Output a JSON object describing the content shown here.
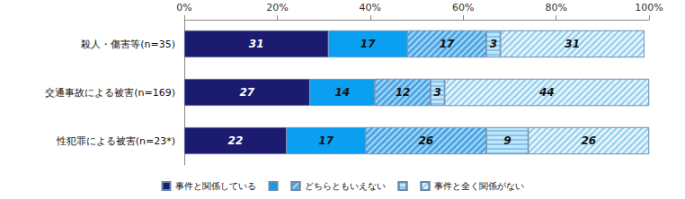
{
  "chart_data": {
    "type": "bar",
    "orientation": "horizontal",
    "stacked": true,
    "data_labels": true,
    "grid": false,
    "legend": "bottom",
    "categories": [
      "殺人・傷害等(n=35)",
      "交通事故による被害(n=169)",
      "性犯罪による被害(n=23*)"
    ],
    "xlim": [
      0,
      100
    ],
    "xticks": [
      {
        "value": 0,
        "label": "0%"
      },
      {
        "value": 20,
        "label": "20%"
      },
      {
        "value": 40,
        "label": "40%"
      },
      {
        "value": 60,
        "label": "60%"
      },
      {
        "value": 80,
        "label": "80%"
      },
      {
        "value": 100,
        "label": "100%"
      }
    ],
    "series": [
      {
        "name": "事件と関係している",
        "color": "#1b1b6f",
        "values": [
          31,
          27,
          22
        ]
      },
      {
        "name": null,
        "color": "#0a9ff0",
        "values": [
          17,
          14,
          17
        ]
      },
      {
        "name": "どちらともいえない",
        "color": "#4aa6e6",
        "values": [
          17,
          12,
          26
        ]
      },
      {
        "name": null,
        "color": "#bfe6fb",
        "values": [
          3,
          3,
          9
        ]
      },
      {
        "name": "事件と全く関係がない",
        "color": "#e3f4fc",
        "values": [
          31,
          44,
          26
        ]
      }
    ]
  }
}
